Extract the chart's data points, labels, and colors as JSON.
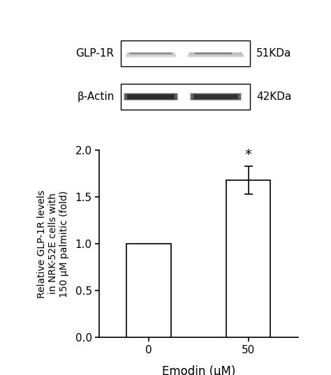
{
  "bar_values": [
    1.0,
    1.68
  ],
  "bar_errors": [
    0.0,
    0.15
  ],
  "bar_positions": [
    0,
    1
  ],
  "bar_labels": [
    "0",
    "50"
  ],
  "bar_color": "#ffffff",
  "bar_edgecolor": "#000000",
  "bar_width": 0.45,
  "ylim": [
    0,
    2.0
  ],
  "yticks": [
    0.0,
    0.5,
    1.0,
    1.5,
    2.0
  ],
  "xlabel": "Emodin (μM)",
  "ylabel": "Relative GLP-1R levels\nin NRK-52E cells with\n150 μM palmitic (fold)",
  "significance_label": "*",
  "significance_bar_index": 1,
  "title_glp1r": "GLP-1R",
  "title_bactin": "β-Actin",
  "kda_glp1r": "51KDa",
  "kda_bactin": "42KDa",
  "bg_color": "#ffffff",
  "text_color": "#000000",
  "font_size": 11,
  "xlabel_fontsize": 12,
  "ylabel_fontsize": 10,
  "tick_fontsize": 11
}
